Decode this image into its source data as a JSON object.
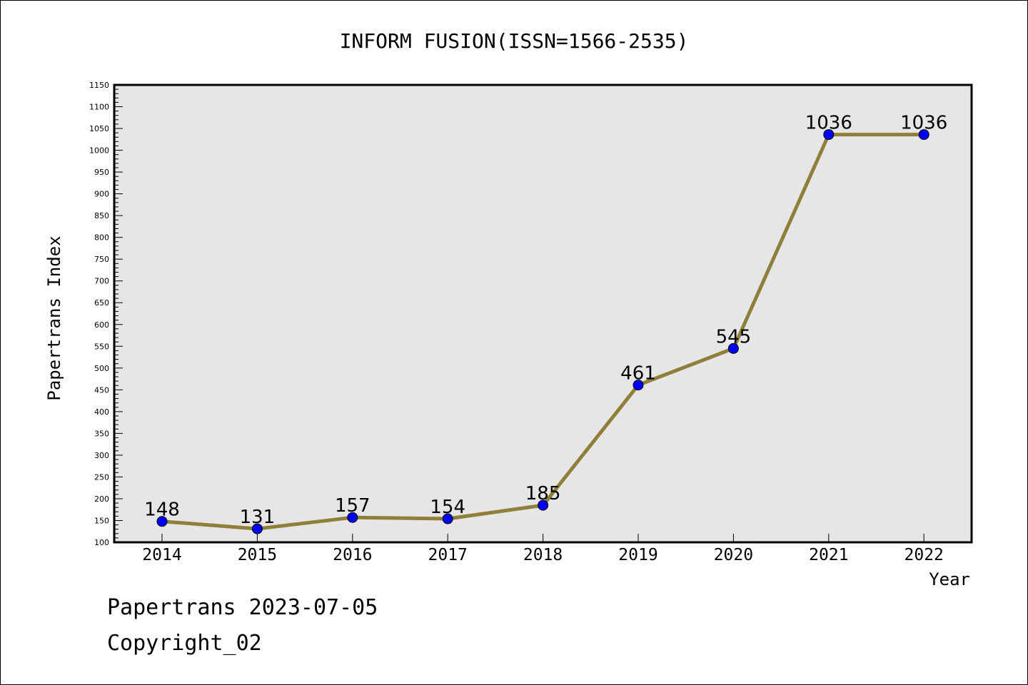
{
  "chart_data": {
    "type": "line",
    "title": "INFORM FUSION(ISSN=1566-2535)",
    "xlabel": "Year",
    "ylabel": "Papertrans Index",
    "categories": [
      "2014",
      "2015",
      "2016",
      "2017",
      "2018",
      "2019",
      "2020",
      "2021",
      "2022"
    ],
    "values": [
      148,
      131,
      157,
      154,
      185,
      461,
      545,
      1036,
      1036
    ],
    "data_labels": [
      "148",
      "131",
      "157",
      "154",
      "185",
      "461",
      "545",
      "1036",
      "1036"
    ],
    "ylim": [
      100,
      1150
    ],
    "yticks": [
      "100",
      "150",
      "200",
      "250",
      "300",
      "350",
      "400",
      "450",
      "500",
      "550",
      "600",
      "650",
      "700",
      "750",
      "800",
      "850",
      "900",
      "950",
      "1000",
      "1050",
      "1100",
      "1150"
    ],
    "grid": false,
    "line_color": "#8f7f3a",
    "marker_color": "#0000ff",
    "plot_background": "#e6e6e6"
  },
  "footer": {
    "line1": "Papertrans 2023-07-05",
    "line2": "Copyright_02"
  }
}
